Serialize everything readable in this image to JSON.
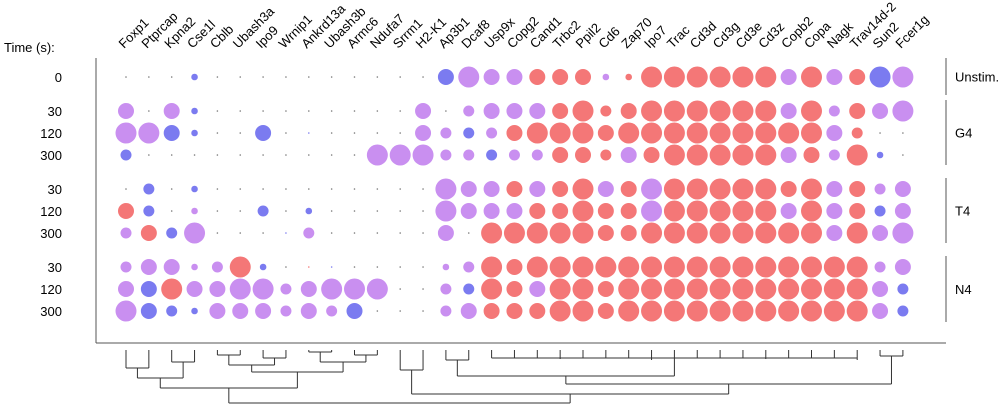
{
  "chart_data": {
    "type": "scatter",
    "subtype": "dot-matrix",
    "time_axis_label": "Time (s):",
    "highlight_gene": "Cd3z",
    "genes": [
      "Foxp1",
      "Ptprcap",
      "Kpna2",
      "Cse1l",
      "Cblb",
      "Ubash3a",
      "Ipo9",
      "Wrnip1",
      "Ankrd13a",
      "Ubash3b",
      "Armc6",
      "Ndufa7",
      "Srrm1",
      "H2-K1",
      "Ap3b1",
      "Dcaf8",
      "Usp9x",
      "Copg2",
      "Cand1",
      "Trbc2",
      "Ppil2",
      "Cd6",
      "Zap70",
      "Ipo7",
      "Trac",
      "Cd3d",
      "Cd3g",
      "Cd3e",
      "Cd3z",
      "Copb2",
      "Copa",
      "Nagk",
      "Trav14d-2",
      "Sun2",
      "Fcer1g"
    ],
    "size_legend": "0=none, 1=tiny dot, 2=small, 3=medium, 4=large, 5=very large",
    "color_key": {
      "p": "#c98ff0",
      "b": "#7b7bf0",
      "r": "#f47777",
      "k": "#777777"
    },
    "conditions": [
      {
        "name": "Unstim.",
        "rows": [
          {
            "time": "0",
            "cells": [
              "k1",
              "k1",
              "k1",
              "b2",
              "k1",
              "k1",
              "k1",
              "k1",
              "k1",
              "k1",
              "k1",
              "k1",
              "k1",
              "k1",
              "b4",
              "p5",
              "p4",
              "p4",
              "r4",
              "r4",
              "r4",
              "p2",
              "r2",
              "r5",
              "r5",
              "r5",
              "r5",
              "r5",
              "r5",
              "p4",
              "r5",
              "p4",
              "r4",
              "b5",
              "p5"
            ]
          }
        ]
      },
      {
        "name": "G4",
        "rows": [
          {
            "time": "30",
            "cells": [
              "p4",
              "k1",
              "p4",
              "b2",
              "k1",
              "k1",
              "k1",
              "k1",
              "k1",
              "k1",
              "k1",
              "k1",
              "k1",
              "p4",
              "k1",
              "p3",
              "p4",
              "p4",
              "p4",
              "r4",
              "r5",
              "r3",
              "r4",
              "r5",
              "r5",
              "r5",
              "r5",
              "r5",
              "r5",
              "p4",
              "r5",
              "p3",
              "r4",
              "p4",
              "p5"
            ]
          },
          {
            "time": "120",
            "cells": [
              "p5",
              "p5",
              "b4",
              "b2",
              "k1",
              "k1",
              "b4",
              "k1",
              "b1",
              "k1",
              "k1",
              "k1",
              "k1",
              "p4",
              "p3",
              "b3",
              "p3",
              "r4",
              "r5",
              "r5",
              "r5",
              "r4",
              "r5",
              "r5",
              "r5",
              "r5",
              "r5",
              "r5",
              "r5",
              "r5",
              "r5",
              "p4",
              "r3",
              "k1",
              "k1"
            ]
          },
          {
            "time": "300",
            "cells": [
              "b3",
              "k1",
              "k1",
              "k1",
              "k1",
              "k1",
              "k1",
              "k1",
              "k1",
              "k1",
              "k1",
              "p5",
              "p5",
              "p5",
              "p3",
              "p3",
              "b3",
              "p3",
              "p3",
              "r4",
              "r4",
              "r3",
              "p4",
              "r4",
              "r5",
              "r5",
              "r5",
              "r5",
              "r5",
              "p4",
              "r4",
              "p3",
              "r5",
              "b2",
              "k1"
            ]
          }
        ]
      },
      {
        "name": "T4",
        "rows": [
          {
            "time": "30",
            "cells": [
              "k1",
              "b3",
              "k1",
              "b2",
              "k1",
              "k1",
              "k1",
              "k1",
              "k1",
              "k1",
              "k1",
              "k1",
              "k1",
              "k1",
              "p5",
              "p4",
              "p4",
              "r4",
              "p4",
              "r4",
              "r5",
              "p4",
              "r4",
              "p5",
              "r5",
              "r5",
              "r5",
              "r5",
              "r5",
              "r4",
              "r5",
              "p4",
              "r4",
              "p3",
              "p4"
            ]
          },
          {
            "time": "120",
            "cells": [
              "r4",
              "b3",
              "k1",
              "p2",
              "k1",
              "k1",
              "b3",
              "k1",
              "b2",
              "k1",
              "k1",
              "k1",
              "k1",
              "k1",
              "p5",
              "p4",
              "p4",
              "p4",
              "r4",
              "r4",
              "r5",
              "r4",
              "r4",
              "p5",
              "r5",
              "r5",
              "r5",
              "r5",
              "r5",
              "p4",
              "r5",
              "p4",
              "r4",
              "b3",
              "p4"
            ]
          },
          {
            "time": "300",
            "cells": [
              "p3",
              "r4",
              "b3",
              "p5",
              "k1",
              "k1",
              "k1",
              "b1",
              "p3",
              "k1",
              "k1",
              "k1",
              "k1",
              "k1",
              "p4",
              "k1",
              "r5",
              "r5",
              "r5",
              "r5",
              "r5",
              "r4",
              "r4",
              "r5",
              "r5",
              "r5",
              "r5",
              "r5",
              "r5",
              "r5",
              "r5",
              "p4",
              "r5",
              "p4",
              "p5"
            ]
          }
        ]
      },
      {
        "name": "N4",
        "rows": [
          {
            "time": "30",
            "cells": [
              "p3",
              "p4",
              "p4",
              "p2",
              "p3",
              "r5",
              "b2",
              "k1",
              "r1",
              "b1",
              "k1",
              "k1",
              "k1",
              "k1",
              "p2",
              "p3",
              "r5",
              "r4",
              "r5",
              "r5",
              "r5",
              "r5",
              "r5",
              "r5",
              "r5",
              "r5",
              "r5",
              "r5",
              "r5",
              "r5",
              "r5",
              "r5",
              "r5",
              "p3",
              "p4"
            ]
          },
          {
            "time": "120",
            "cells": [
              "p4",
              "b4",
              "r5",
              "p4",
              "p4",
              "p5",
              "p5",
              "p3",
              "p4",
              "p5",
              "p5",
              "p5",
              "k1",
              "k1",
              "p3",
              "b3",
              "r5",
              "r4",
              "p4",
              "r5",
              "r5",
              "r4",
              "r5",
              "r5",
              "r5",
              "r5",
              "r5",
              "r5",
              "r5",
              "r5",
              "r5",
              "r5",
              "r5",
              "p4",
              "b3"
            ]
          },
          {
            "time": "300",
            "cells": [
              "p5",
              "b4",
              "b3",
              "b2",
              "p4",
              "p4",
              "p4",
              "p3",
              "p4",
              "p3",
              "b4",
              "k1",
              "k1",
              "k1",
              "p3",
              "p4",
              "r4",
              "r4",
              "r4",
              "r5",
              "r5",
              "r4",
              "r5",
              "r5",
              "r5",
              "r5",
              "r5",
              "r5",
              "r5",
              "r5",
              "r5",
              "r5",
              "r5",
              "p4",
              "b3"
            ]
          }
        ]
      }
    ]
  }
}
